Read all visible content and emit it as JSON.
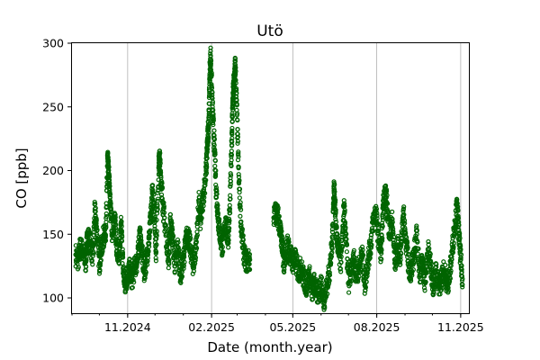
{
  "chart_data": {
    "type": "scatter",
    "title": "Utö",
    "xlabel": "Date (month.year)",
    "ylabel": "CO [ppb]",
    "xlim": [
      "2024-09-01",
      "2025-11-10"
    ],
    "ylim": [
      88,
      300
    ],
    "yticks": [
      100,
      150,
      200,
      250,
      300
    ],
    "xticks": [
      {
        "date": "2024-11-01",
        "label": "11.2024"
      },
      {
        "date": "2025-02-01",
        "label": "02.2025"
      },
      {
        "date": "2025-05-01",
        "label": "05.2025"
      },
      {
        "date": "2025-08-01",
        "label": "08.2025"
      },
      {
        "date": "2025-11-01",
        "label": "11.2025"
      }
    ],
    "grid": "x-major",
    "marker": "open-circle",
    "color": "#006400",
    "series": [
      {
        "values": [
          [
            "2024-09-05",
            134
          ],
          [
            "2024-09-08",
            130
          ],
          [
            "2024-09-10",
            140
          ],
          [
            "2024-09-13",
            136
          ],
          [
            "2024-09-16",
            128
          ],
          [
            "2024-09-18",
            150
          ],
          [
            "2024-09-21",
            142
          ],
          [
            "2024-09-24",
            133
          ],
          [
            "2024-09-26",
            168
          ],
          [
            "2024-09-28",
            156
          ],
          [
            "2024-10-01",
            127
          ],
          [
            "2024-10-03",
            138
          ],
          [
            "2024-10-06",
            150
          ],
          [
            "2024-10-08",
            145
          ],
          [
            "2024-10-10",
            210
          ],
          [
            "2024-10-11",
            200
          ],
          [
            "2024-10-12",
            188
          ],
          [
            "2024-10-13",
            172
          ],
          [
            "2024-10-15",
            152
          ],
          [
            "2024-10-18",
            162
          ],
          [
            "2024-10-20",
            140
          ],
          [
            "2024-10-23",
            135
          ],
          [
            "2024-10-25",
            158
          ],
          [
            "2024-10-27",
            123
          ],
          [
            "2024-10-29",
            110
          ],
          [
            "2024-11-01",
            118
          ],
          [
            "2024-11-03",
            122
          ],
          [
            "2024-11-06",
            115
          ],
          [
            "2024-11-09",
            125
          ],
          [
            "2024-11-12",
            130
          ],
          [
            "2024-11-14",
            150
          ],
          [
            "2024-11-16",
            140
          ],
          [
            "2024-11-19",
            120
          ],
          [
            "2024-11-21",
            128
          ],
          [
            "2024-11-24",
            142
          ],
          [
            "2024-11-26",
            160
          ],
          [
            "2024-11-28",
            182
          ],
          [
            "2024-11-30",
            175
          ],
          [
            "2024-12-02",
            135
          ],
          [
            "2024-12-05",
            202
          ],
          [
            "2024-12-06",
            210
          ],
          [
            "2024-12-08",
            190
          ],
          [
            "2024-12-10",
            170
          ],
          [
            "2024-12-13",
            150
          ],
          [
            "2024-12-16",
            130
          ],
          [
            "2024-12-18",
            160
          ],
          [
            "2024-12-20",
            148
          ],
          [
            "2024-12-23",
            125
          ],
          [
            "2024-12-26",
            140
          ],
          [
            "2024-12-29",
            118
          ],
          [
            "2025-01-01",
            130
          ],
          [
            "2025-01-04",
            145
          ],
          [
            "2025-01-06",
            150
          ],
          [
            "2025-01-09",
            138
          ],
          [
            "2025-01-12",
            125
          ],
          [
            "2025-01-15",
            140
          ],
          [
            "2025-01-18",
            175
          ],
          [
            "2025-01-20",
            160
          ],
          [
            "2025-01-23",
            180
          ],
          [
            "2025-01-26",
            200
          ],
          [
            "2025-01-27",
            215
          ],
          [
            "2025-01-28",
            228
          ],
          [
            "2025-01-29",
            240
          ],
          [
            "2025-01-30",
            276
          ],
          [
            "2025-01-31",
            290
          ],
          [
            "2025-02-02",
            250
          ],
          [
            "2025-02-04",
            220
          ],
          [
            "2025-02-06",
            185
          ],
          [
            "2025-02-08",
            165
          ],
          [
            "2025-02-10",
            150
          ],
          [
            "2025-02-13",
            140
          ],
          [
            "2025-02-16",
            160
          ],
          [
            "2025-02-19",
            145
          ],
          [
            "2025-02-21",
            170
          ],
          [
            "2025-02-23",
            220
          ],
          [
            "2025-02-24",
            250
          ],
          [
            "2025-02-25",
            265
          ],
          [
            "2025-02-26",
            272
          ],
          [
            "2025-02-27",
            283
          ],
          [
            "2025-03-01",
            240
          ],
          [
            "2025-03-03",
            190
          ],
          [
            "2025-03-06",
            150
          ],
          [
            "2025-03-09",
            132
          ],
          [
            "2025-03-12",
            128
          ],
          [
            "2025-03-15",
            130
          ],
          [
            "2025-04-10",
            163
          ],
          [
            "2025-04-13",
            168
          ],
          [
            "2025-04-16",
            160
          ],
          [
            "2025-04-18",
            150
          ],
          [
            "2025-04-20",
            135
          ],
          [
            "2025-04-22",
            125
          ],
          [
            "2025-04-25",
            142
          ],
          [
            "2025-04-28",
            135
          ],
          [
            "2025-05-01",
            128
          ],
          [
            "2025-05-04",
            130
          ],
          [
            "2025-05-07",
            120
          ],
          [
            "2025-05-10",
            124
          ],
          [
            "2025-05-13",
            115
          ],
          [
            "2025-05-16",
            110
          ],
          [
            "2025-05-19",
            118
          ],
          [
            "2025-05-22",
            105
          ],
          [
            "2025-05-25",
            112
          ],
          [
            "2025-05-28",
            102
          ],
          [
            "2025-06-01",
            110
          ],
          [
            "2025-06-04",
            98
          ],
          [
            "2025-06-07",
            108
          ],
          [
            "2025-06-10",
            120
          ],
          [
            "2025-06-13",
            140
          ],
          [
            "2025-06-15",
            186
          ],
          [
            "2025-06-16",
            178
          ],
          [
            "2025-06-18",
            150
          ],
          [
            "2025-06-20",
            135
          ],
          [
            "2025-06-23",
            128
          ],
          [
            "2025-06-26",
            172
          ],
          [
            "2025-06-28",
            150
          ],
          [
            "2025-07-01",
            112
          ],
          [
            "2025-07-04",
            120
          ],
          [
            "2025-07-07",
            130
          ],
          [
            "2025-07-10",
            118
          ],
          [
            "2025-07-13",
            125
          ],
          [
            "2025-07-16",
            135
          ],
          [
            "2025-07-19",
            110
          ],
          [
            "2025-07-22",
            128
          ],
          [
            "2025-07-25",
            140
          ],
          [
            "2025-07-28",
            160
          ],
          [
            "2025-07-31",
            168
          ],
          [
            "2025-08-03",
            145
          ],
          [
            "2025-08-06",
            135
          ],
          [
            "2025-08-08",
            172
          ],
          [
            "2025-08-10",
            183
          ],
          [
            "2025-08-12",
            175
          ],
          [
            "2025-08-15",
            150
          ],
          [
            "2025-08-18",
            160
          ],
          [
            "2025-08-21",
            128
          ],
          [
            "2025-08-24",
            140
          ],
          [
            "2025-08-27",
            132
          ],
          [
            "2025-08-30",
            168
          ],
          [
            "2025-09-02",
            145
          ],
          [
            "2025-09-05",
            125
          ],
          [
            "2025-09-08",
            120
          ],
          [
            "2025-09-11",
            135
          ],
          [
            "2025-09-14",
            150
          ],
          [
            "2025-09-17",
            118
          ],
          [
            "2025-09-20",
            128
          ],
          [
            "2025-09-23",
            112
          ],
          [
            "2025-09-26",
            138
          ],
          [
            "2025-09-29",
            125
          ],
          [
            "2025-10-02",
            110
          ],
          [
            "2025-10-05",
            120
          ],
          [
            "2025-10-08",
            108
          ],
          [
            "2025-10-11",
            115
          ],
          [
            "2025-10-14",
            122
          ],
          [
            "2025-10-17",
            110
          ],
          [
            "2025-10-20",
            118
          ],
          [
            "2025-10-23",
            140
          ],
          [
            "2025-10-26",
            160
          ],
          [
            "2025-10-28",
            172
          ],
          [
            "2025-10-30",
            150
          ],
          [
            "2025-11-01",
            130
          ],
          [
            "2025-11-03",
            115
          ]
        ]
      }
    ]
  }
}
